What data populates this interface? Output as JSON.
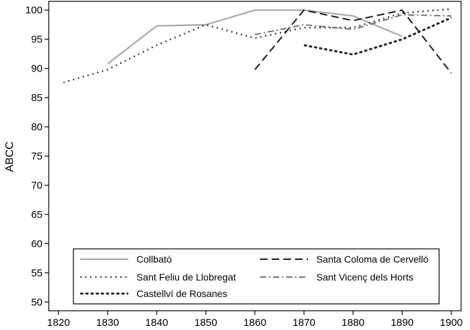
{
  "chart_data": {
    "type": "line",
    "title": "",
    "xlabel": "",
    "ylabel": "ABCC",
    "xlim": [
      1818,
      1902
    ],
    "ylim": [
      48.5,
      101.5
    ],
    "xticks": [
      1820,
      1830,
      1840,
      1850,
      1860,
      1870,
      1880,
      1890,
      1900
    ],
    "yticks": [
      50,
      55,
      60,
      65,
      70,
      75,
      80,
      85,
      90,
      95,
      100
    ],
    "grid": false,
    "legend_position": "bottom",
    "series": [
      {
        "name": "Collbató",
        "color": "#a8a8a8",
        "style": "solid",
        "points": [
          [
            1830,
            90.8
          ],
          [
            1840,
            97.3
          ],
          [
            1850,
            97.5
          ],
          [
            1860,
            100
          ],
          [
            1870,
            100
          ],
          [
            1880,
            99
          ],
          [
            1890,
            95.5
          ]
        ]
      },
      {
        "name": "Santa Coloma de Cervelló",
        "color": "#1a1a1a",
        "style": "longdash",
        "points": [
          [
            1860,
            89.8
          ],
          [
            1870,
            100
          ],
          [
            1880,
            98.2
          ],
          [
            1890,
            100
          ],
          [
            1900,
            89.2
          ]
        ]
      },
      {
        "name": "Sant Feliu de Llobregat",
        "color": "#1a1a1a",
        "style": "dotted",
        "points": [
          [
            1821,
            87.6
          ],
          [
            1830,
            89.8
          ],
          [
            1840,
            94
          ],
          [
            1850,
            97.5
          ],
          [
            1860,
            95.2
          ],
          [
            1870,
            97
          ],
          [
            1880,
            97
          ],
          [
            1890,
            99.5
          ],
          [
            1900,
            100.2
          ]
        ]
      },
      {
        "name": "Sant Vicenç dels Horts",
        "color": "#666666",
        "style": "dashdot",
        "points": [
          [
            1860,
            95.8
          ],
          [
            1870,
            97.5
          ],
          [
            1880,
            96.7
          ],
          [
            1890,
            99.2
          ],
          [
            1900,
            99
          ]
        ]
      },
      {
        "name": "Castellví de Rosanes",
        "color": "#1a1a1a",
        "style": "shortdash",
        "points": [
          [
            1870,
            94
          ],
          [
            1880,
            92.4
          ],
          [
            1890,
            95
          ],
          [
            1900,
            98.7
          ]
        ]
      }
    ]
  }
}
